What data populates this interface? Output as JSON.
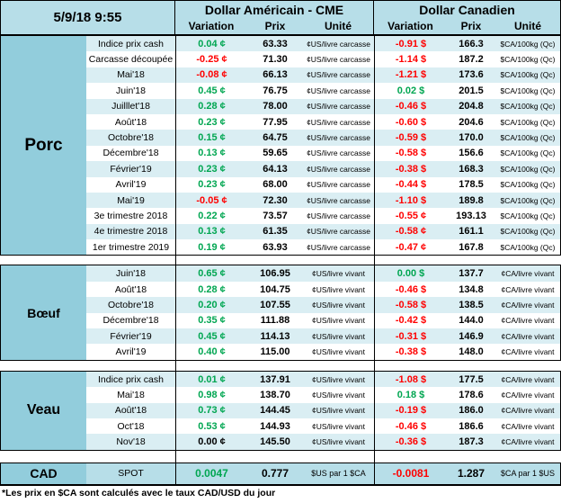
{
  "header": {
    "datetime": "5/9/18 9:55",
    "us_title": "Dollar Américain - CME",
    "ca_title": "Dollar Canadien",
    "col_variation": "Variation",
    "col_prix": "Prix",
    "col_unite": "Unité"
  },
  "colors": {
    "green": "#00A651",
    "red": "#FF0000",
    "black": "#000000",
    "stripe_blue": "#DAEEF3",
    "stripe_white": "#FFFFFF",
    "header_bg": "#B7DEE8",
    "label_bg": "#92CDDC"
  },
  "sections": [
    {
      "label": "Porc",
      "usUnit": "¢US/livre carcasse",
      "caUnit": "$CA/100kg (Qc)",
      "rows": [
        {
          "label": "Indice prix cash",
          "usVar": "0.04 ¢",
          "usTone": "pos",
          "usPrix": "63.33",
          "caVar": "-0.91 $",
          "caTone": "neg",
          "caPrix": "166.3"
        },
        {
          "label": "Carcasse découpée",
          "usVar": "-0.25 ¢",
          "usTone": "neg",
          "usPrix": "71.30",
          "caVar": "-1.14 $",
          "caTone": "neg",
          "caPrix": "187.2"
        },
        {
          "label": "Mai'18",
          "usVar": "-0.08 ¢",
          "usTone": "neg",
          "usPrix": "66.13",
          "caVar": "-1.21 $",
          "caTone": "neg",
          "caPrix": "173.6"
        },
        {
          "label": "Juin'18",
          "usVar": "0.45 ¢",
          "usTone": "pos",
          "usPrix": "76.75",
          "caVar": "0.02 $",
          "caTone": "pos",
          "caPrix": "201.5"
        },
        {
          "label": "Juilllet'18",
          "usVar": "0.28 ¢",
          "usTone": "pos",
          "usPrix": "78.00",
          "caVar": "-0.46 $",
          "caTone": "neg",
          "caPrix": "204.8"
        },
        {
          "label": "Août'18",
          "usVar": "0.23 ¢",
          "usTone": "pos",
          "usPrix": "77.95",
          "caVar": "-0.60 $",
          "caTone": "neg",
          "caPrix": "204.6"
        },
        {
          "label": "Octobre'18",
          "usVar": "0.15 ¢",
          "usTone": "pos",
          "usPrix": "64.75",
          "caVar": "-0.59 $",
          "caTone": "neg",
          "caPrix": "170.0"
        },
        {
          "label": "Décembre'18",
          "usVar": "0.13 ¢",
          "usTone": "pos",
          "usPrix": "59.65",
          "caVar": "-0.58 $",
          "caTone": "neg",
          "caPrix": "156.6"
        },
        {
          "label": "Février'19",
          "usVar": "0.23 ¢",
          "usTone": "pos",
          "usPrix": "64.13",
          "caVar": "-0.38 $",
          "caTone": "neg",
          "caPrix": "168.3"
        },
        {
          "label": "Avril'19",
          "usVar": "0.23 ¢",
          "usTone": "pos",
          "usPrix": "68.00",
          "caVar": "-0.44 $",
          "caTone": "neg",
          "caPrix": "178.5"
        },
        {
          "label": "Mai'19",
          "usVar": "-0.05 ¢",
          "usTone": "neg",
          "usPrix": "72.30",
          "caVar": "-1.10 $",
          "caTone": "neg",
          "caPrix": "189.8"
        },
        {
          "label": "3e trimestre 2018",
          "usVar": "0.22 ¢",
          "usTone": "pos",
          "usPrix": "73.57",
          "caVar": "-0.55 ¢",
          "caTone": "neg",
          "caPrix": "193.13"
        },
        {
          "label": "4e trimestre 2018",
          "usVar": "0.13 ¢",
          "usTone": "pos",
          "usPrix": "61.35",
          "caVar": "-0.58 ¢",
          "caTone": "neg",
          "caPrix": "161.1"
        },
        {
          "label": "1er trimestre 2019",
          "usVar": "0.19 ¢",
          "usTone": "pos",
          "usPrix": "63.93",
          "caVar": "-0.47 ¢",
          "caTone": "neg",
          "caPrix": "167.8"
        }
      ]
    },
    {
      "label": "Bœuf",
      "usUnit": "¢US/livre vivant",
      "caUnit": "¢CA/livre vivant",
      "rows": [
        {
          "label": "Juin'18",
          "usVar": "0.65 ¢",
          "usTone": "pos",
          "usPrix": "106.95",
          "caVar": "0.00 $",
          "caTone": "pos",
          "caPrix": "137.7"
        },
        {
          "label": "Août'18",
          "usVar": "0.28 ¢",
          "usTone": "pos",
          "usPrix": "104.75",
          "caVar": "-0.46 $",
          "caTone": "neg",
          "caPrix": "134.8"
        },
        {
          "label": "Octobre'18",
          "usVar": "0.20 ¢",
          "usTone": "pos",
          "usPrix": "107.55",
          "caVar": "-0.58 $",
          "caTone": "neg",
          "caPrix": "138.5"
        },
        {
          "label": "Décembre'18",
          "usVar": "0.35 ¢",
          "usTone": "pos",
          "usPrix": "111.88",
          "caVar": "-0.42 $",
          "caTone": "neg",
          "caPrix": "144.0"
        },
        {
          "label": "Février'19",
          "usVar": "0.45 ¢",
          "usTone": "pos",
          "usPrix": "114.13",
          "caVar": "-0.31 $",
          "caTone": "neg",
          "caPrix": "146.9"
        },
        {
          "label": "Avril'19",
          "usVar": "0.40 ¢",
          "usTone": "pos",
          "usPrix": "115.00",
          "caVar": "-0.38 $",
          "caTone": "neg",
          "caPrix": "148.0"
        }
      ]
    },
    {
      "label": "Veau",
      "usUnit": "¢US/livre vivant",
      "caUnit": "¢CA/livre vivant",
      "rows": [
        {
          "label": "Indice prix cash",
          "usVar": "0.01 ¢",
          "usTone": "pos",
          "usPrix": "137.91",
          "caVar": "-1.08 $",
          "caTone": "neg",
          "caPrix": "177.5"
        },
        {
          "label": "Mai'18",
          "usVar": "0.98 ¢",
          "usTone": "pos",
          "usPrix": "138.70",
          "caVar": "0.18 $",
          "caTone": "pos",
          "caPrix": "178.6"
        },
        {
          "label": "Août'18",
          "usVar": "0.73 ¢",
          "usTone": "pos",
          "usPrix": "144.45",
          "caVar": "-0.19 $",
          "caTone": "neg",
          "caPrix": "186.0"
        },
        {
          "label": "Oct'18",
          "usVar": "0.53 ¢",
          "usTone": "pos",
          "usPrix": "144.93",
          "caVar": "-0.46 $",
          "caTone": "neg",
          "caPrix": "186.6"
        },
        {
          "label": "Nov'18",
          "usVar": "0.00 ¢",
          "usTone": "zero",
          "usPrix": "145.50",
          "caVar": "-0.36 $",
          "caTone": "neg",
          "caPrix": "187.3"
        }
      ]
    }
  ],
  "cad": {
    "label": "CAD",
    "row_label": "SPOT",
    "usVar": "0.0047",
    "usTone": "pos",
    "usPrix": "0.777",
    "usUnit": "$US par 1 $CA",
    "caVar": "-0.0081",
    "caTone": "neg",
    "caPrix": "1.287",
    "caUnit": "$CA par 1 $US"
  },
  "footnote": "*Les  prix en $CA sont calculés avec le taux CAD/USD du jour"
}
